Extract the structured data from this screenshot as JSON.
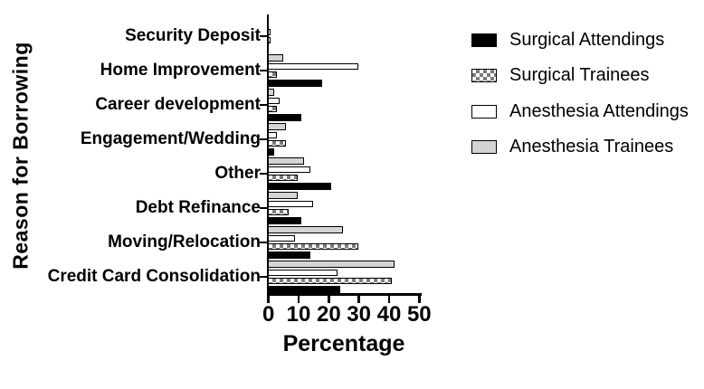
{
  "chart_data": {
    "type": "bar",
    "orientation": "horizontal",
    "xlabel": "Percentage",
    "ylabel": "Reason for Borrowing",
    "xlim": [
      0,
      50
    ],
    "xticks": [
      "0",
      "10",
      "20",
      "30",
      "40",
      "50"
    ],
    "grid": false,
    "legend_position": "right",
    "categories": [
      "Security Deposit",
      "Home Improvement",
      "Career development",
      "Engagement/Wedding",
      "Other",
      "Debt Refinance",
      "Moving/Relocation",
      "Credit Card Consolidation"
    ],
    "series": [
      {
        "name": "Surgical Attendings",
        "swatch": "black",
        "values": [
          0,
          18,
          11,
          2,
          21,
          11,
          14,
          24
        ]
      },
      {
        "name": "Surgical Trainees",
        "swatch": "checkered",
        "values": [
          1,
          3,
          3,
          6,
          10,
          7,
          30,
          41
        ]
      },
      {
        "name": "Anesthesia Attendings",
        "swatch": "white",
        "values": [
          1,
          30,
          4,
          3,
          14,
          15,
          9,
          23
        ]
      },
      {
        "name": "Anesthesia Trainees",
        "swatch": "gray",
        "values": [
          0,
          5,
          2,
          6,
          12,
          10,
          25,
          42
        ]
      }
    ],
    "bar_order_top_to_bottom": [
      "Anesthesia Trainees",
      "Anesthesia Attendings",
      "Surgical Trainees",
      "Surgical Attendings"
    ],
    "colors": {
      "black_fill": "#000000",
      "white_fill": "#ffffff",
      "gray_fill": "#d4d4d4",
      "checker_dark": "#7d7d7d",
      "bar_border": "#000000"
    }
  }
}
